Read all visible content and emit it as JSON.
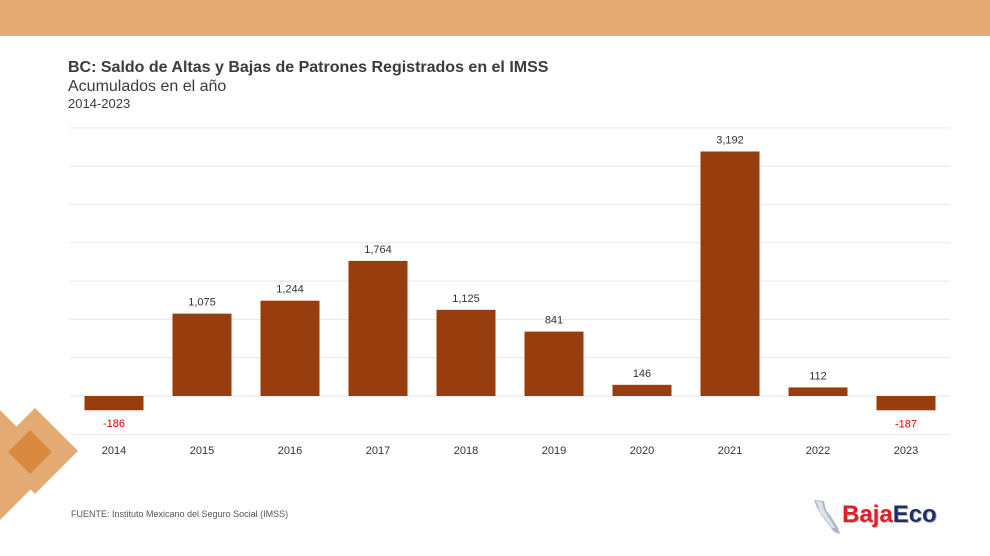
{
  "title": "BC: Saldo de Altas y Bajas de Patrones Registrados en el IMSS",
  "subtitle": "Acumulados en el año",
  "range": "2014-2023",
  "source": "FUENTE: Instituto Mexicano del Seguro Social (IMSS)",
  "logo": {
    "part1": "Baja",
    "part2": "Eco"
  },
  "colors": {
    "bar": "#983e0e",
    "negative_label": "#e00000",
    "label": "#333333",
    "grid": "#e6e6e6",
    "band": "#e3aa74"
  },
  "chart_data": {
    "type": "bar",
    "categories": [
      "2014",
      "2015",
      "2016",
      "2017",
      "2018",
      "2019",
      "2020",
      "2021",
      "2022",
      "2023"
    ],
    "values": [
      -186,
      1075,
      1244,
      1764,
      1125,
      841,
      146,
      3192,
      112,
      -187
    ],
    "value_labels": [
      "-186",
      "1,075",
      "1,244",
      "1,764",
      "1,125",
      "841",
      "146",
      "3,192",
      "112",
      "-187"
    ],
    "title": "BC: Saldo de Altas y Bajas de Patrones Registrados en el IMSS",
    "ylim": [
      -500,
      3500
    ],
    "grid": true,
    "legend": "none"
  }
}
